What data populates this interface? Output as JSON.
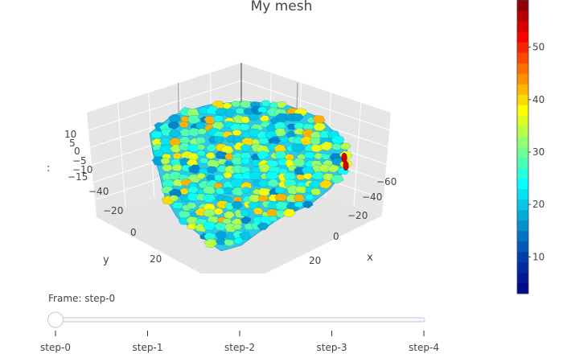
{
  "chart_data": {
    "type": "mesh3d",
    "title": "My mesh",
    "axes": {
      "x": {
        "label": "x",
        "ticks": [
          "−60",
          "−40",
          "−20",
          "0",
          "20"
        ]
      },
      "y": {
        "label": "y",
        "ticks": [
          "−40",
          "−20",
          "0",
          "20"
        ]
      },
      "z": {
        "label": "",
        "ticks": [
          "10",
          "5",
          "0",
          "−5",
          "−10",
          "−15"
        ]
      }
    },
    "colorbar": {
      "colorscale": "Jet",
      "ticks": [
        "10",
        "20",
        "30",
        "40",
        "50"
      ],
      "range": [
        3,
        59
      ]
    },
    "slider": {
      "current_label": "Frame: ",
      "current_value": "step-0",
      "steps": [
        "step-0",
        "step-1",
        "step-2",
        "step-3",
        "step-4"
      ],
      "active_index": 0
    }
  }
}
